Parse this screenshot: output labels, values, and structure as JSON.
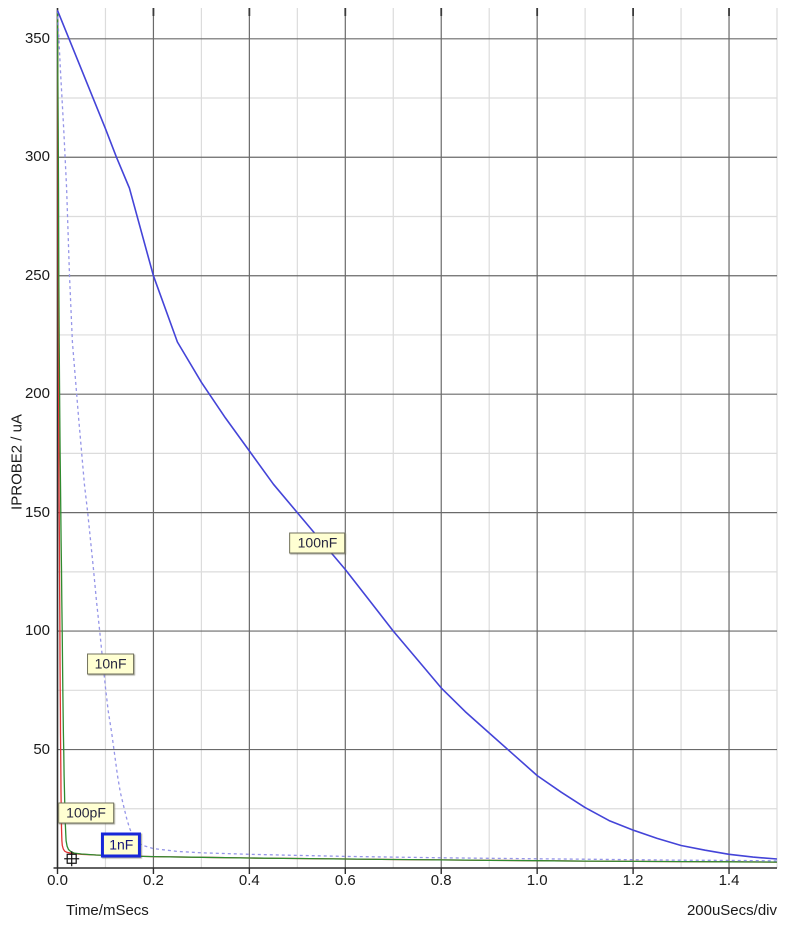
{
  "chart_data": {
    "type": "line",
    "title": "",
    "xlabel": "Time/mSecs",
    "ylabel": "IPROBE2 / uA",
    "x_scale_note": "200uSecs/div",
    "x_unit": "mSecs",
    "y_unit": "uA",
    "xlim": [
      0,
      1.5
    ],
    "ylim": [
      0,
      363
    ],
    "x_major_tick_values": [
      0,
      0.2,
      0.4,
      0.6,
      0.8,
      1.0,
      1.2,
      1.4
    ],
    "x_major_tick_labels": [
      "0.0",
      "0.2",
      "0.4",
      "0.6",
      "0.8",
      "1.0",
      "1.2",
      "1.4"
    ],
    "x_minor_step": 0.1,
    "y_major_tick_values": [
      50,
      100,
      150,
      200,
      250,
      300,
      350
    ],
    "y_major_tick_labels": [
      "50",
      "100",
      "150",
      "200",
      "250",
      "300",
      "350"
    ],
    "y_minor_step": 25,
    "grid": "major and minor gridlines on both axes",
    "legend_position": "inline draggable curve labels",
    "colors": {
      "grid_major": "#6a6a6a",
      "grid_minor": "#dcdcdc",
      "axis": "#2e2e2e",
      "label_bg": "#ffffd2",
      "label_border": "#72725e",
      "selected_border": "#1727d8",
      "text": "#1a1a1a"
    },
    "series": [
      {
        "name": "100pF",
        "color": "#e03434",
        "line_style": "solid",
        "width": 1.3,
        "points": [
          [
            0,
            362
          ],
          [
            0.0004,
            337
          ],
          [
            0.0007,
            312
          ],
          [
            0.0011,
            287
          ],
          [
            0.0014,
            250
          ],
          [
            0.0018,
            222
          ],
          [
            0.0021,
            205
          ],
          [
            0.0025,
            190
          ],
          [
            0.0028,
            176
          ],
          [
            0.0032,
            162
          ],
          [
            0.0035,
            150
          ],
          [
            0.0039,
            138
          ],
          [
            0.0042,
            126
          ],
          [
            0.0046,
            113
          ],
          [
            0.0049,
            100
          ],
          [
            0.0053,
            88
          ],
          [
            0.0056,
            76
          ],
          [
            0.006,
            66
          ],
          [
            0.0063,
            57
          ],
          [
            0.0067,
            48
          ],
          [
            0.007,
            39
          ],
          [
            0.0074,
            32
          ],
          [
            0.0077,
            26
          ],
          [
            0.0081,
            21
          ],
          [
            0.0084,
            17
          ],
          [
            0.0088,
            14
          ],
          [
            0.0091,
            11.5
          ],
          [
            0.01,
            9.5
          ],
          [
            0.012,
            8
          ],
          [
            0.015,
            7.1
          ],
          [
            0.02,
            6.6
          ],
          [
            0.03,
            6.2
          ],
          [
            0.05,
            5.8
          ],
          [
            0.08,
            5.5
          ],
          [
            0.12,
            5.2
          ],
          [
            0.2,
            4.8
          ],
          [
            0.3,
            4.5
          ],
          [
            0.4,
            4.2
          ],
          [
            0.5,
            4
          ],
          [
            0.6,
            3.8
          ],
          [
            0.7,
            3.6
          ],
          [
            0.8,
            3.4
          ],
          [
            0.9,
            3.2
          ],
          [
            1,
            3.1
          ],
          [
            1.1,
            2.9
          ],
          [
            1.2,
            2.8
          ],
          [
            1.3,
            2.7
          ],
          [
            1.4,
            2.6
          ],
          [
            1.5,
            2.5
          ]
        ]
      },
      {
        "name": "1nF",
        "color": "#2f8b2f",
        "line_style": "solid",
        "width": 1.3,
        "points": [
          [
            0,
            362
          ],
          [
            0.0007,
            337
          ],
          [
            0.0014,
            312
          ],
          [
            0.0021,
            287
          ],
          [
            0.0028,
            250
          ],
          [
            0.0035,
            222
          ],
          [
            0.0041,
            205
          ],
          [
            0.0048,
            190
          ],
          [
            0.0055,
            176
          ],
          [
            0.0062,
            162
          ],
          [
            0.0069,
            150
          ],
          [
            0.0076,
            138
          ],
          [
            0.0083,
            126
          ],
          [
            0.009,
            113
          ],
          [
            0.0097,
            100
          ],
          [
            0.0104,
            88
          ],
          [
            0.011,
            76
          ],
          [
            0.0117,
            66
          ],
          [
            0.0124,
            57
          ],
          [
            0.0131,
            48
          ],
          [
            0.0138,
            39
          ],
          [
            0.0145,
            32
          ],
          [
            0.0152,
            26
          ],
          [
            0.0159,
            21
          ],
          [
            0.0166,
            17
          ],
          [
            0.0173,
            14
          ],
          [
            0.018,
            11.5
          ],
          [
            0.02,
            9.2
          ],
          [
            0.023,
            7.8
          ],
          [
            0.028,
            6.9
          ],
          [
            0.035,
            6.3
          ],
          [
            0.05,
            5.9
          ],
          [
            0.08,
            5.5
          ],
          [
            0.12,
            5.2
          ],
          [
            0.2,
            4.8
          ],
          [
            0.3,
            4.5
          ],
          [
            0.4,
            4.2
          ],
          [
            0.5,
            4
          ],
          [
            0.6,
            3.8
          ],
          [
            0.7,
            3.6
          ],
          [
            0.8,
            3.4
          ],
          [
            0.9,
            3.2
          ],
          [
            1,
            3.1
          ],
          [
            1.1,
            2.9
          ],
          [
            1.2,
            2.8
          ],
          [
            1.3,
            2.7
          ],
          [
            1.4,
            2.6
          ],
          [
            1.5,
            2.5
          ]
        ]
      },
      {
        "name": "10nF",
        "color": "#9595e8",
        "line_style": "dashed",
        "width": 1.3,
        "points": [
          [
            0,
            362
          ],
          [
            0.006,
            337
          ],
          [
            0.013,
            312
          ],
          [
            0.019,
            287
          ],
          [
            0.025,
            250
          ],
          [
            0.031,
            222
          ],
          [
            0.038,
            205
          ],
          [
            0.044,
            190
          ],
          [
            0.05,
            176
          ],
          [
            0.056,
            162
          ],
          [
            0.063,
            150
          ],
          [
            0.069,
            138
          ],
          [
            0.075,
            126
          ],
          [
            0.081,
            113
          ],
          [
            0.088,
            100
          ],
          [
            0.094,
            88
          ],
          [
            0.1,
            76
          ],
          [
            0.106,
            66
          ],
          [
            0.113,
            57
          ],
          [
            0.119,
            48
          ],
          [
            0.125,
            39
          ],
          [
            0.131,
            32
          ],
          [
            0.138,
            26
          ],
          [
            0.144,
            21
          ],
          [
            0.15,
            17
          ],
          [
            0.156,
            14
          ],
          [
            0.163,
            12
          ],
          [
            0.17,
            10.4
          ],
          [
            0.18,
            9.4
          ],
          [
            0.2,
            8.2
          ],
          [
            0.25,
            7
          ],
          [
            0.3,
            6.4
          ],
          [
            0.4,
            5.8
          ],
          [
            0.5,
            5.3
          ],
          [
            0.6,
            4.9
          ],
          [
            0.7,
            4.6
          ],
          [
            0.8,
            4.3
          ],
          [
            0.9,
            4.1
          ],
          [
            1,
            3.9
          ],
          [
            1.1,
            3.7
          ],
          [
            1.2,
            3.5
          ],
          [
            1.3,
            3.3
          ],
          [
            1.4,
            3.2
          ],
          [
            1.5,
            3
          ]
        ]
      },
      {
        "name": "100nF",
        "color": "#4444d8",
        "line_style": "solid",
        "width": 1.6,
        "points": [
          [
            0,
            362
          ],
          [
            0.05,
            337
          ],
          [
            0.1,
            312
          ],
          [
            0.123,
            300
          ],
          [
            0.15,
            287
          ],
          [
            0.2,
            250
          ],
          [
            0.25,
            222
          ],
          [
            0.3,
            205
          ],
          [
            0.35,
            190
          ],
          [
            0.4,
            176
          ],
          [
            0.45,
            162
          ],
          [
            0.5,
            150
          ],
          [
            0.55,
            138
          ],
          [
            0.6,
            126
          ],
          [
            0.65,
            113
          ],
          [
            0.7,
            100
          ],
          [
            0.75,
            88
          ],
          [
            0.8,
            76
          ],
          [
            0.85,
            66
          ],
          [
            0.9,
            57
          ],
          [
            0.95,
            48
          ],
          [
            1,
            39
          ],
          [
            1.05,
            32
          ],
          [
            1.1,
            25.5
          ],
          [
            1.15,
            20
          ],
          [
            1.2,
            16
          ],
          [
            1.25,
            12.5
          ],
          [
            1.3,
            9.5
          ],
          [
            1.35,
            7.5
          ],
          [
            1.4,
            5.8
          ],
          [
            1.45,
            4.6
          ],
          [
            1.5,
            3.8
          ]
        ]
      }
    ],
    "curve_labels": [
      {
        "text": "100pF",
        "x": 0.0595,
        "y": 23.2,
        "selected": false
      },
      {
        "text": "1nF",
        "x": 0.133,
        "y": 9.9,
        "selected": true
      },
      {
        "text": "10nF",
        "x": 0.1106,
        "y": 86,
        "selected": false
      },
      {
        "text": "100nF",
        "x": 0.542,
        "y": 137,
        "selected": false
      }
    ],
    "cursor_marker": {
      "x": 0.0296,
      "y": 3.9
    }
  }
}
